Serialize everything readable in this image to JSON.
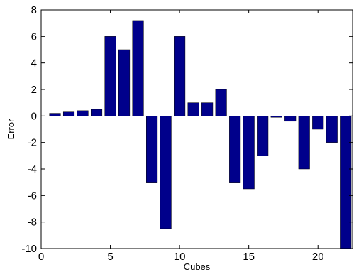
{
  "chart_data": {
    "type": "bar",
    "title": "",
    "xlabel": "Cubes",
    "ylabel": "Error",
    "xlim": [
      0,
      22.5
    ],
    "ylim": [
      -10,
      8
    ],
    "xticks": [
      0,
      5,
      10,
      15,
      20
    ],
    "yticks": [
      -10,
      -8,
      -6,
      -4,
      -2,
      0,
      2,
      4,
      6,
      8
    ],
    "grid": false,
    "legend": "none",
    "bar_color": "#00008b",
    "x": [
      1,
      2,
      3,
      4,
      5,
      6,
      7,
      8,
      9,
      10,
      11,
      12,
      13,
      14,
      15,
      16,
      17,
      18,
      19,
      20,
      21,
      22
    ],
    "values": [
      0.2,
      0.3,
      0.4,
      0.5,
      6.0,
      5.0,
      7.2,
      -5.0,
      -8.5,
      6.0,
      1.0,
      1.0,
      2.0,
      -5.0,
      -5.5,
      -3.0,
      -0.1,
      -0.4,
      -4.0,
      -1.0,
      -2.0,
      -10.0
    ]
  }
}
